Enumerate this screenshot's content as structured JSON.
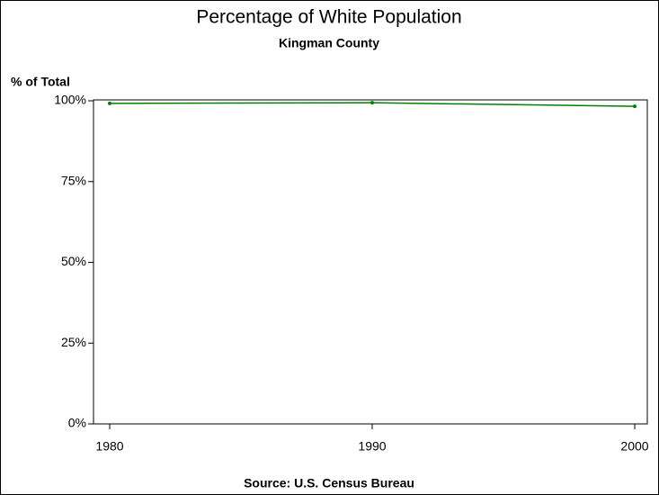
{
  "chart_data": {
    "type": "line",
    "title": "Percentage of White Population",
    "subtitle": "Kingman County",
    "y_label": "% of Total",
    "source": "Source: U.S. Census Bureau",
    "x": [
      1980,
      1990,
      2000
    ],
    "xlim": [
      1980,
      2000
    ],
    "xticks": [
      1980,
      1990,
      2000
    ],
    "series": [
      {
        "color": "#008000",
        "values": [
          99.2,
          99.4,
          98.3
        ]
      }
    ],
    "ylim": [
      0,
      100
    ],
    "yticks": [
      {
        "value": 0,
        "label": "0%"
      },
      {
        "value": 25,
        "label": "25%"
      },
      {
        "value": 50,
        "label": "50%"
      },
      {
        "value": 75,
        "label": "75%"
      },
      {
        "value": 100,
        "label": "100%"
      }
    ],
    "grid": false
  }
}
